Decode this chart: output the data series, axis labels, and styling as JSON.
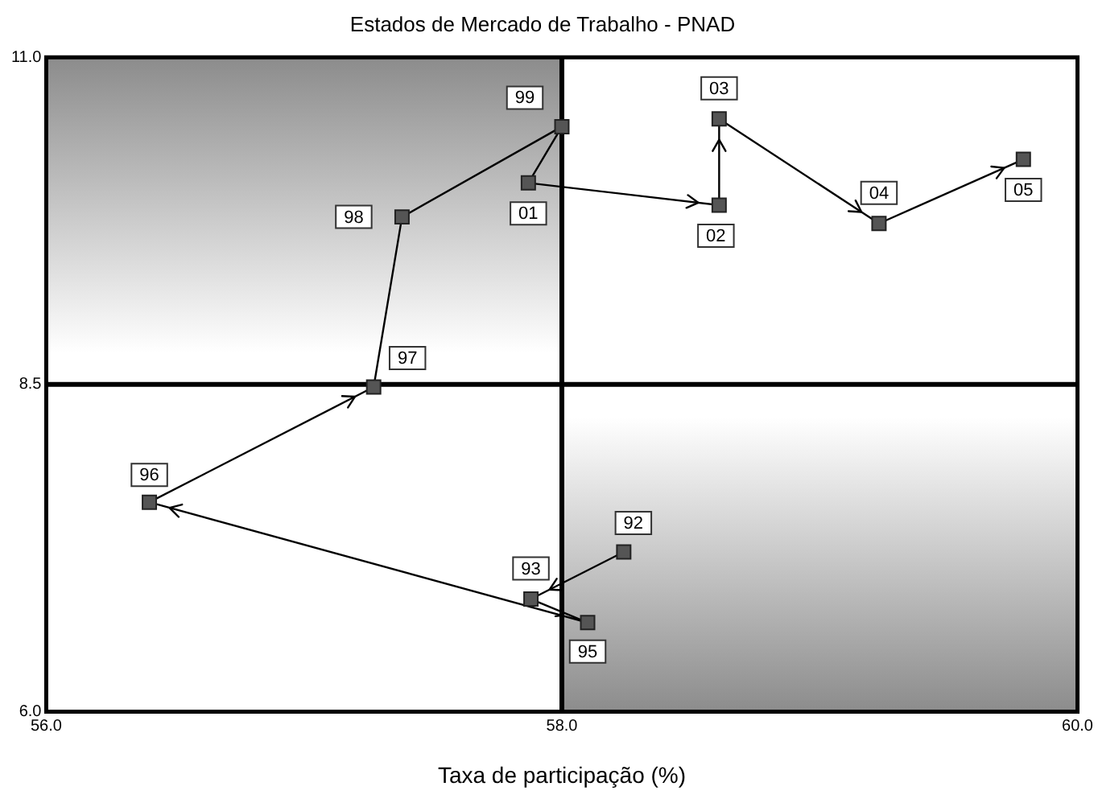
{
  "chart_data": {
    "type": "line",
    "title": "Estados de Mercado de Trabalho - PNAD",
    "xlabel": "Taxa de participação (%)",
    "x": [
      58.24,
      57.88,
      58.1,
      56.4,
      57.27,
      57.38,
      58.0,
      57.87,
      58.61,
      58.61,
      59.23,
      59.79
    ],
    "series": [
      {
        "color": "#555555",
        "values": [
          7.22,
          6.86,
          6.68,
          7.6,
          8.48,
          9.78,
          10.47,
          10.04,
          9.87,
          10.53,
          9.73,
          10.22
        ]
      }
    ],
    "annotations": [
      {
        "text": "92",
        "x": 58.24,
        "y": 7.22
      },
      {
        "text": "93",
        "x": 57.88,
        "y": 6.86
      },
      {
        "text": "95",
        "x": 58.1,
        "y": 6.68
      },
      {
        "text": "96",
        "x": 56.4,
        "y": 7.6
      },
      {
        "text": "97",
        "x": 57.27,
        "y": 8.48
      },
      {
        "text": "98",
        "x": 57.38,
        "y": 9.78
      },
      {
        "text": "99",
        "x": 58.0,
        "y": 10.47
      },
      {
        "text": "01",
        "x": 57.87,
        "y": 10.04
      },
      {
        "text": "02",
        "x": 58.61,
        "y": 9.87
      },
      {
        "text": "03",
        "x": 58.61,
        "y": 10.53
      },
      {
        "text": "04",
        "x": 59.23,
        "y": 9.73
      },
      {
        "text": "05",
        "x": 59.79,
        "y": 10.22
      }
    ],
    "xlim": [
      56,
      60
    ],
    "xticks": [
      {
        "value": 56,
        "label": "56.0"
      },
      {
        "value": 58,
        "label": "58.0"
      },
      {
        "value": 60,
        "label": "60.0"
      }
    ],
    "ylim": [
      6,
      11
    ],
    "yticks": [
      {
        "value": 6,
        "label": "6.0"
      },
      {
        "value": 8.5,
        "label": "8.5"
      },
      {
        "value": 11,
        "label": "11.0"
      }
    ],
    "ref_lines": [
      {
        "axis": "x",
        "value": 58,
        "color": "#000000"
      },
      {
        "axis": "y",
        "value": 8.5,
        "color": "#000000"
      }
    ],
    "legend": false,
    "marker": "square",
    "line_style": "solid"
  }
}
